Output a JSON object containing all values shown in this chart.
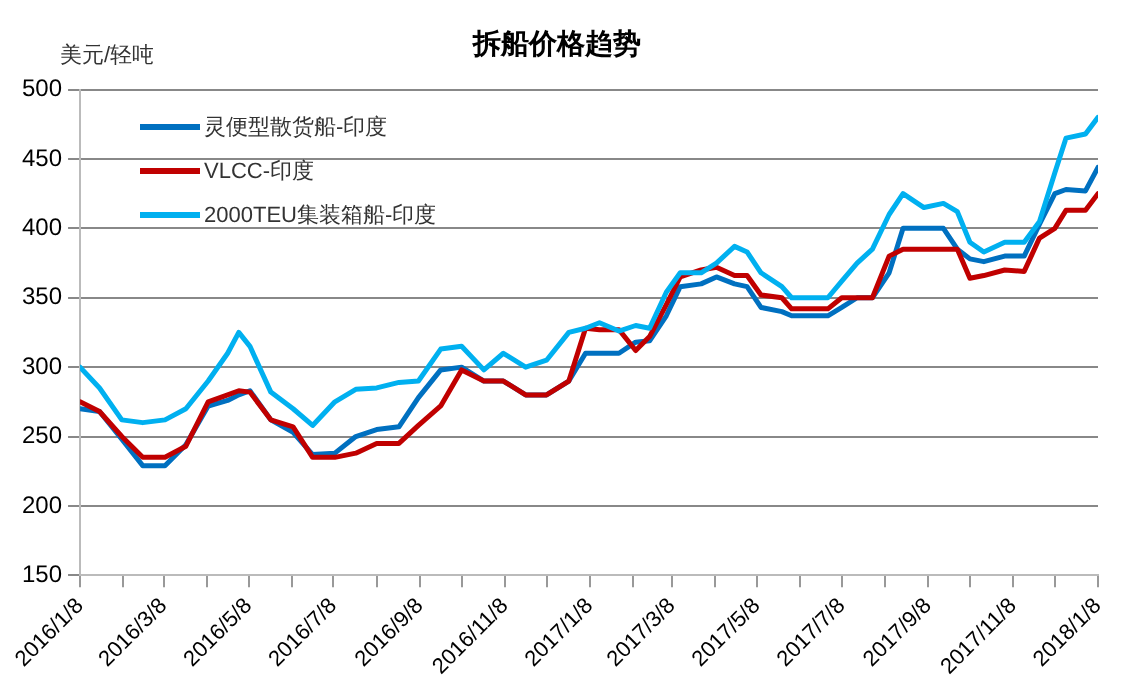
{
  "chart_data": {
    "type": "line",
    "title": "拆船价格趋势",
    "ylabel": "美元/轻吨",
    "x": [
      "2016-01-08",
      "2016-01-22",
      "2016-02-07",
      "2016-02-22",
      "2016-03-09",
      "2016-03-24",
      "2016-04-09",
      "2016-04-23",
      "2016-05-01",
      "2016-05-09",
      "2016-05-24",
      "2016-06-09",
      "2016-06-23",
      "2016-07-09",
      "2016-07-24",
      "2016-08-08",
      "2016-08-24",
      "2016-09-07",
      "2016-09-23",
      "2016-10-08",
      "2016-10-24",
      "2016-11-07",
      "2016-11-23",
      "2016-12-08",
      "2016-12-24",
      "2017-01-05",
      "2017-01-15",
      "2017-01-29",
      "2017-02-10",
      "2017-02-20",
      "2017-03-04",
      "2017-03-14",
      "2017-03-29",
      "2017-04-09",
      "2017-04-22",
      "2017-05-01",
      "2017-05-11",
      "2017-05-26",
      "2017-06-02",
      "2017-06-28",
      "2017-07-08",
      "2017-07-19",
      "2017-07-30",
      "2017-08-11",
      "2017-08-21",
      "2017-09-05",
      "2017-09-19",
      "2017-09-29",
      "2017-10-08",
      "2017-10-18",
      "2017-11-02",
      "2017-11-16",
      "2017-11-27",
      "2017-12-08",
      "2017-12-16",
      "2017-12-30",
      "2018-01-08"
    ],
    "series": [
      {
        "name": "灵便型散货船-印度",
        "color": "#0070c0",
        "values": [
          270,
          268,
          248,
          229,
          229,
          244,
          272,
          276,
          280,
          283,
          262,
          253,
          237,
          238,
          250,
          255,
          257,
          278,
          298,
          300,
          290,
          290,
          280,
          280,
          290,
          310,
          310,
          310,
          318,
          319,
          337,
          358,
          360,
          365,
          360,
          358,
          343,
          340,
          337,
          337,
          343,
          350,
          350,
          368,
          400,
          400,
          400,
          385,
          378,
          376,
          380,
          380,
          403,
          425,
          428,
          427,
          444
        ]
      },
      {
        "name": "VLCC-印度",
        "color": "#c00000",
        "values": [
          275,
          268,
          250,
          235,
          235,
          243,
          275,
          280,
          283,
          282,
          262,
          257,
          235,
          235,
          238,
          245,
          245,
          258,
          272,
          298,
          290,
          290,
          280,
          280,
          290,
          328,
          327,
          327,
          312,
          322,
          345,
          365,
          370,
          372,
          366,
          366,
          352,
          350,
          342,
          342,
          350,
          350,
          350,
          380,
          385,
          385,
          385,
          385,
          364,
          366,
          370,
          369,
          393,
          400,
          413,
          413,
          425
        ]
      },
      {
        "name": "2000TEU集装箱船-印度",
        "color": "#00b0f0",
        "values": [
          300,
          285,
          262,
          260,
          262,
          270,
          290,
          310,
          325,
          315,
          282,
          270,
          258,
          275,
          284,
          285,
          289,
          290,
          313,
          315,
          298,
          310,
          300,
          305,
          325,
          328,
          332,
          326,
          330,
          328,
          354,
          368,
          368,
          375,
          387,
          383,
          368,
          358,
          350,
          350,
          362,
          375,
          385,
          410,
          425,
          415,
          418,
          412,
          390,
          383,
          390,
          390,
          405,
          440,
          465,
          468,
          480
        ]
      }
    ],
    "xlim": [
      "2016-01-08",
      "2018-01-08"
    ],
    "xticks": [
      {
        "value": "2016-01-08",
        "label": "2016/1/8"
      },
      {
        "value": "2016-02-08",
        "label": null
      },
      {
        "value": "2016-03-08",
        "label": "2016/3/8"
      },
      {
        "value": "2016-04-08",
        "label": null
      },
      {
        "value": "2016-05-08",
        "label": "2016/5/8"
      },
      {
        "value": "2016-06-08",
        "label": null
      },
      {
        "value": "2016-07-08",
        "label": "2016/7/8"
      },
      {
        "value": "2016-08-08",
        "label": null
      },
      {
        "value": "2016-09-08",
        "label": "2016/9/8"
      },
      {
        "value": "2016-10-08",
        "label": null
      },
      {
        "value": "2016-11-08",
        "label": "2016/11/8"
      },
      {
        "value": "2016-12-08",
        "label": null
      },
      {
        "value": "2017-01-08",
        "label": "2017/1/8"
      },
      {
        "value": "2017-02-08",
        "label": null
      },
      {
        "value": "2017-03-08",
        "label": "2017/3/8"
      },
      {
        "value": "2017-04-08",
        "label": null
      },
      {
        "value": "2017-05-08",
        "label": "2017/5/8"
      },
      {
        "value": "2017-06-08",
        "label": null
      },
      {
        "value": "2017-07-08",
        "label": "2017/7/8"
      },
      {
        "value": "2017-08-08",
        "label": null
      },
      {
        "value": "2017-09-08",
        "label": "2017/9/8"
      },
      {
        "value": "2017-10-08",
        "label": null
      },
      {
        "value": "2017-11-08",
        "label": "2017/11/8"
      },
      {
        "value": "2017-12-08",
        "label": null
      },
      {
        "value": "2018-01-08",
        "label": "2018/1/8"
      }
    ],
    "ylim": [
      150,
      500
    ],
    "yticks": [
      150,
      200,
      250,
      300,
      350,
      400,
      450,
      500
    ],
    "grid": "y",
    "legend": "top left",
    "marker": "none",
    "line_style": "solid"
  }
}
